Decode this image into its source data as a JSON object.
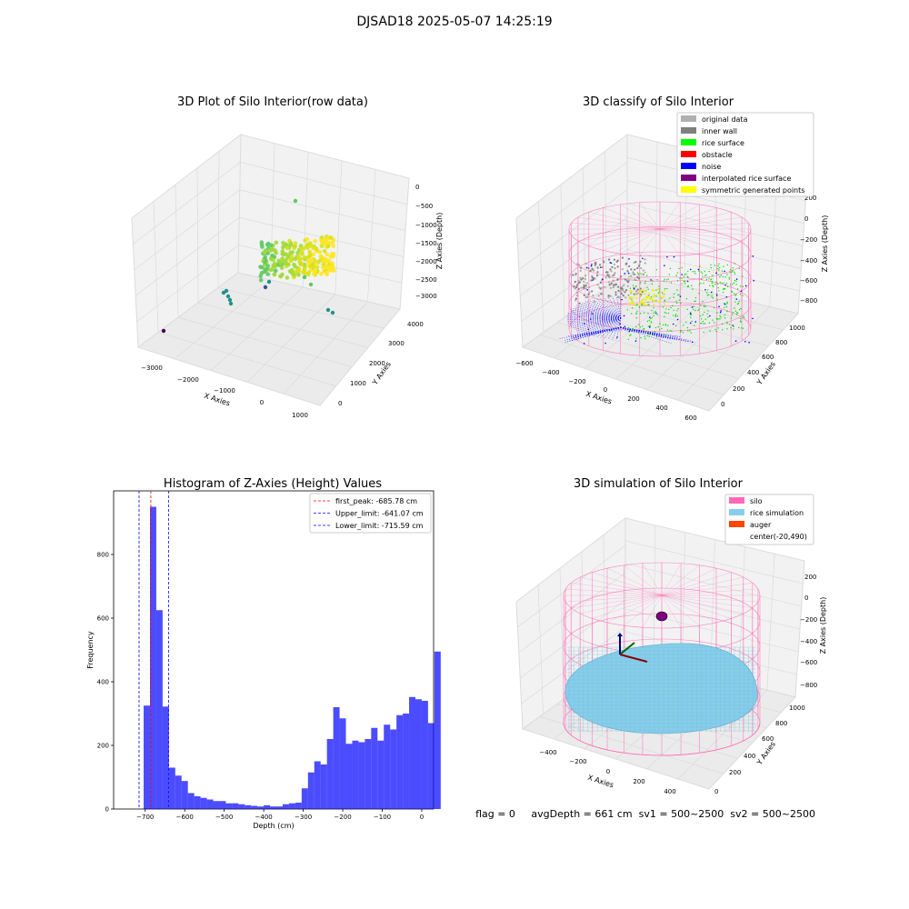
{
  "suptitle": "DJSAD18 2025-05-07 14:25:19",
  "footer": {
    "flag": "flag = 0",
    "avg_depth": "avgDepth = 661 cm",
    "sv1": "sv1 = 500~2500",
    "sv2": "sv2 = 500~2500"
  },
  "colors": {
    "silo": "#ff69b4",
    "rice": "#87ceeb",
    "auger": "#ff4500",
    "hist": "#0000ff",
    "peak_line": "#ff0000",
    "limit_line": "#0000ff"
  },
  "chart_data": [
    {
      "type": "scatter",
      "title": "3D Plot of Silo Interior(row data)",
      "xlabel": "X Axies",
      "ylabel": "Y Axies",
      "zlabel": "Z Axies (Depth)",
      "x_ticks": [
        "−3000",
        "−2000",
        "−1000",
        "0",
        "1000"
      ],
      "y_ticks": [
        "0",
        "1000",
        "2000",
        "3000",
        "4000"
      ],
      "z_ticks": [
        "0",
        "−500",
        "−1000",
        "−1500",
        "−2000",
        "−2500",
        "−3000"
      ],
      "grid": true,
      "colormap": "viridis"
    },
    {
      "type": "scatter",
      "title": "3D classify of Silo Interior",
      "xlabel": "X Axies",
      "ylabel": "Y Axies",
      "zlabel": "Z Axies (Depth)",
      "x_ticks": [
        "−600",
        "−400",
        "−200",
        "0",
        "200",
        "400",
        "600"
      ],
      "y_ticks": [
        "0",
        "200",
        "400",
        "600",
        "800",
        "1000"
      ],
      "z_ticks": [
        "200",
        "0",
        "−200",
        "−400",
        "−600",
        "−800"
      ],
      "legend_placement": "upper-right",
      "legend": [
        {
          "label": "original data",
          "color": "#b0b0b0"
        },
        {
          "label": "inner wall",
          "color": "#808080"
        },
        {
          "label": "rice surface",
          "color": "#00ff00"
        },
        {
          "label": "obstacle",
          "color": "#ff0000"
        },
        {
          "label": "noise",
          "color": "#0000ff"
        },
        {
          "label": "interpolated rice surface",
          "color": "#800080"
        },
        {
          "label": "symmetric generated points",
          "color": "#ffff00"
        }
      ]
    },
    {
      "type": "bar",
      "title": "Histogram of Z-Axies (Height) Values",
      "xlabel": "Depth (cm)",
      "ylabel": "Frequency",
      "xlim": [
        -780,
        30
      ],
      "ylim": [
        0,
        1000
      ],
      "x_ticks": [
        {
          "value": -700,
          "label": "−700"
        },
        {
          "value": -600,
          "label": "−600"
        },
        {
          "value": -500,
          "label": "−500"
        },
        {
          "value": -400,
          "label": "−400"
        },
        {
          "value": -300,
          "label": "−300"
        },
        {
          "value": -200,
          "label": "−200"
        },
        {
          "value": -100,
          "label": "−100"
        },
        {
          "value": 0,
          "label": "0"
        }
      ],
      "y_ticks": [
        0,
        200,
        400,
        600,
        800
      ],
      "bin_start": -704,
      "bin_width": 16,
      "values": [
        325,
        950,
        625,
        322,
        130,
        105,
        88,
        50,
        40,
        35,
        30,
        25,
        25,
        18,
        18,
        15,
        12,
        10,
        8,
        12,
        8,
        8,
        15,
        18,
        20,
        65,
        115,
        150,
        140,
        220,
        320,
        285,
        205,
        215,
        210,
        220,
        255,
        215,
        265,
        250,
        295,
        300,
        352,
        345,
        340,
        270,
        495
      ],
      "legend_placement": "upper-right",
      "vlines": [
        {
          "x": -685.78,
          "label": "first_peak: -685.78 cm",
          "color": "#ff0000"
        },
        {
          "x": -641.07,
          "label": "Upper_limit: -641.07 cm",
          "color": "#0000ff"
        },
        {
          "x": -715.59,
          "label": "Lower_limit: -715.59 cm",
          "color": "#0000ff"
        }
      ]
    },
    {
      "type": "scatter",
      "title": "3D simulation of Silo Interior",
      "xlabel": "X Axies",
      "ylabel": "Y Axies",
      "zlabel": "Z Axies (Depth)",
      "x_ticks": [
        "−400",
        "−200",
        "0",
        "200",
        "400"
      ],
      "y_ticks": [
        "0",
        "200",
        "400",
        "600",
        "800",
        "1000"
      ],
      "z_ticks": [
        "200",
        "0",
        "−200",
        "−400",
        "−600",
        "−800"
      ],
      "legend_placement": "upper-right",
      "legend": [
        {
          "label": "silo",
          "color": "#ff69b4"
        },
        {
          "label": "rice simulation",
          "color": "#87ceeb"
        },
        {
          "label": "auger",
          "color": "#ff4500"
        },
        {
          "label": "center(-20,490)",
          "color": ""
        }
      ]
    }
  ]
}
